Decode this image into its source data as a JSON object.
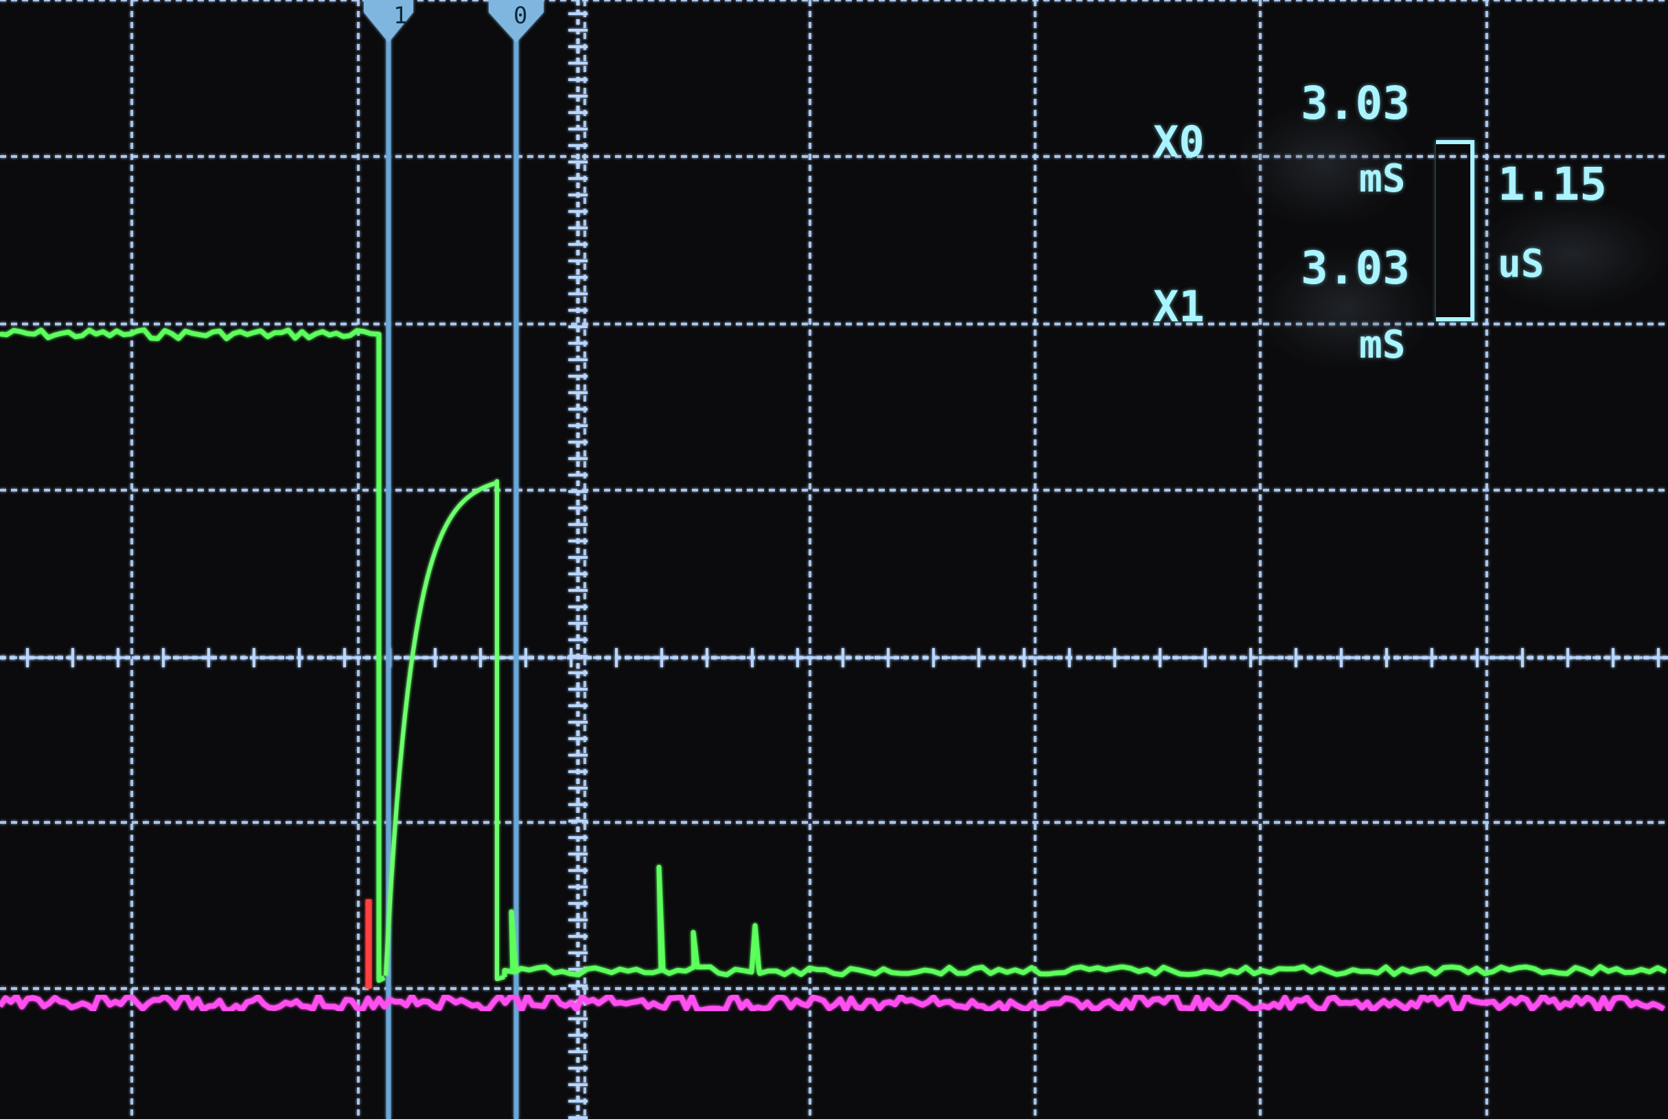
{
  "cursors": {
    "x0": {
      "label": "X0",
      "value": "3.03",
      "unit": "mS",
      "marker": "1"
    },
    "x1": {
      "label": "X1",
      "value": "3.03",
      "unit": "mS",
      "marker": "0"
    },
    "delta": {
      "value": "1.15",
      "unit": "uS"
    }
  },
  "colors": {
    "background": "#0b0b0d",
    "grid": "#b8d6ff",
    "trace_green": "#5cff5c",
    "trace_magenta": "#ff4ff0",
    "cursor": "#6aa6d6",
    "readout": "#a9f4ff"
  },
  "traces": {
    "green_high_level": 0.29,
    "pulse_peak_level": 0.43,
    "baseline_level": 0.87,
    "magenta_level": 0.9
  },
  "icons": [
    "cursor-x0-marker-icon",
    "cursor-x1-marker-icon"
  ]
}
